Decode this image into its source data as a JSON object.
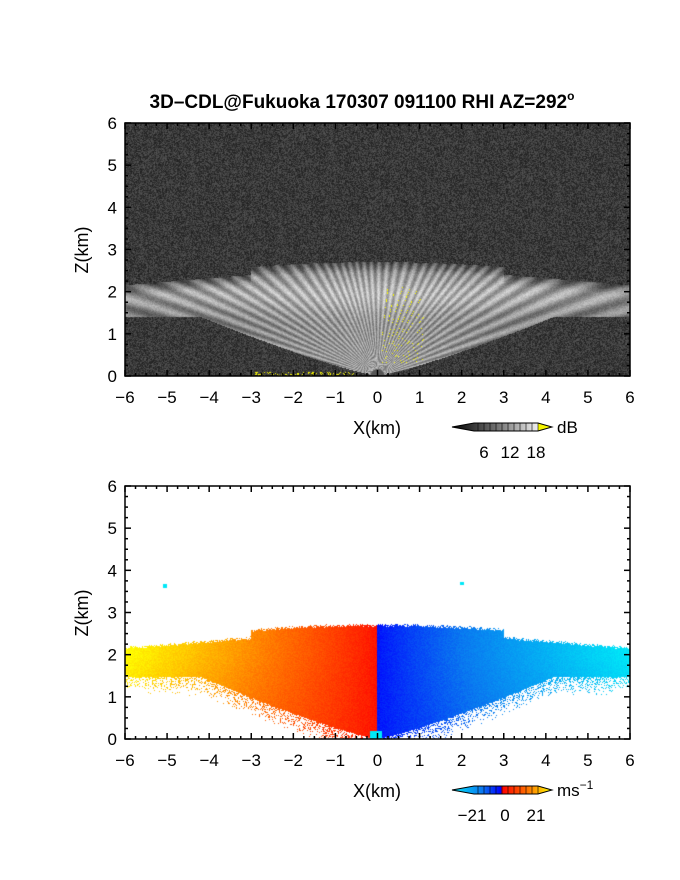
{
  "figure": {
    "title_main": "3D–CDL@Fukuoka 170307 091100 RHI AZ=292",
    "title_sup": "o"
  },
  "chart_data": [
    {
      "type": "heatmap",
      "quantity": "dB",
      "xlabel": "X(km)",
      "ylabel": "Z(km)",
      "xlim": [
        -6,
        6
      ],
      "ylim": [
        0,
        6
      ],
      "xticks": [
        "-6",
        "-5",
        "-4",
        "-3",
        "-2",
        "-1",
        "0",
        "1",
        "2",
        "3",
        "4",
        "5",
        "6"
      ],
      "yticks": [
        "0",
        "1",
        "2",
        "3",
        "4",
        "5",
        "6"
      ],
      "colorbar": {
        "unit": "dB",
        "ticks": [
          "6",
          "12",
          "18"
        ],
        "range": [
          0,
          21
        ]
      },
      "features": {
        "echo_top_km": 2.7,
        "layer_base_km": 1.4,
        "layer_top_km": 2.4,
        "layer_extent_km": [
          -6,
          6
        ],
        "rays_from_origin": true,
        "background": "noise"
      }
    },
    {
      "type": "heatmap",
      "quantity": "ms-1",
      "xlabel": "X(km)",
      "ylabel": "Z(km)",
      "xlim": [
        -6,
        6
      ],
      "ylim": [
        0,
        6
      ],
      "xticks": [
        "-6",
        "-5",
        "-4",
        "-3",
        "-2",
        "-1",
        "0",
        "1",
        "2",
        "3",
        "4",
        "5",
        "6"
      ],
      "yticks": [
        "0",
        "1",
        "2",
        "3",
        "4",
        "5",
        "6"
      ],
      "colorbar": {
        "unit": "ms",
        "unit_sup": "−1",
        "ticks": [
          "−21",
          "0",
          "21"
        ],
        "range": [
          -21,
          21
        ]
      },
      "features": {
        "echo_top_km": 2.7,
        "negative_side": "x > 0",
        "positive_side": "x < 0",
        "velocity_range_ms": [
          -21,
          21
        ]
      }
    }
  ],
  "colors": {
    "gray_low": "#1e1e1e",
    "gray_high": "#f0f0f0",
    "yellow": "#f5f500",
    "vel_neg_strong": "#00e8f8",
    "vel_neg_mid": "#0a78f0",
    "vel_neg_weak": "#0000ff",
    "vel_zero": "#ff0000",
    "vel_pos_mid": "#ff7000",
    "vel_pos_strong": "#ffff00"
  }
}
